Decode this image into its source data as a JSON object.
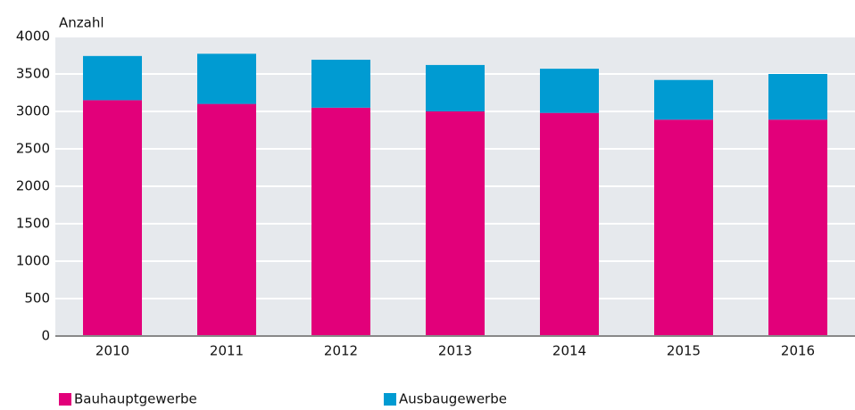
{
  "chart_data": {
    "type": "stacked_bar",
    "y_label": "Anzahl",
    "categories": [
      "2010",
      "2011",
      "2012",
      "2013",
      "2014",
      "2015",
      "2016"
    ],
    "series": [
      {
        "name": "Bauhauptgewerbe",
        "color": "#e2007a",
        "values": [
          3150,
          3100,
          3050,
          3000,
          2980,
          2890,
          2890
        ]
      },
      {
        "name": "Ausbaugewerbe",
        "color": "#009bd2",
        "values": [
          590,
          670,
          640,
          620,
          590,
          530,
          610
        ]
      }
    ],
    "ylim": [
      0,
      4000
    ],
    "yticks": [
      0,
      500,
      1000,
      1500,
      2000,
      2500,
      3000,
      3500,
      4000
    ],
    "grid": true
  }
}
